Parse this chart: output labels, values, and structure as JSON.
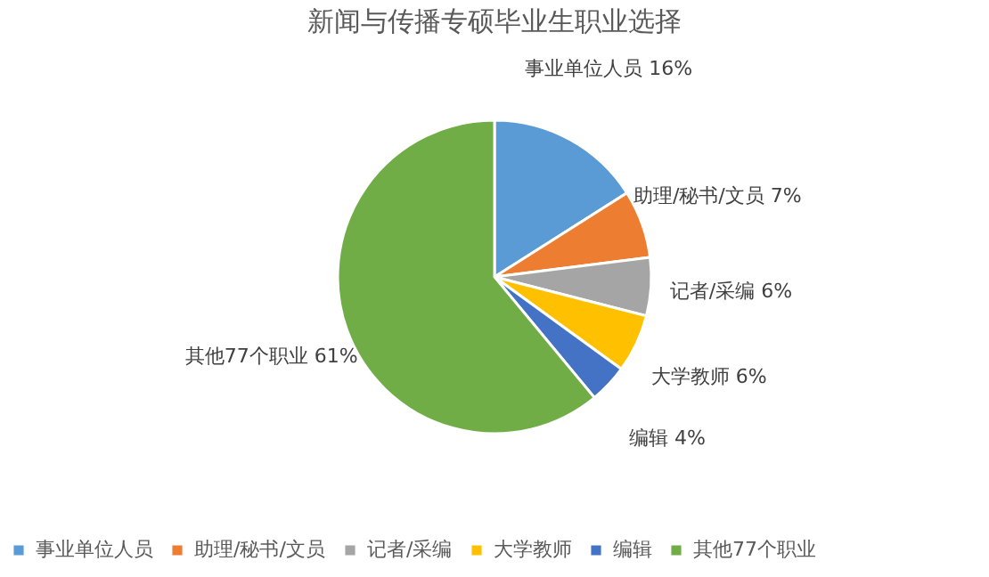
{
  "chart_data": {
    "type": "pie",
    "title": "新闻与传播专硕毕业生职业选择",
    "categories": [
      "事业单位人员",
      "助理/秘书/文员",
      "记者/采编",
      "大学教师",
      "编辑",
      "其他77个职业"
    ],
    "values": [
      16,
      7,
      6,
      6,
      4,
      61
    ],
    "value_labels": [
      "16%",
      "7%",
      "6%",
      "6%",
      "4%",
      "61%"
    ],
    "colors": [
      "#5b9bd5",
      "#ed7d31",
      "#a5a5a5",
      "#ffc000",
      "#4472c4",
      "#70ad47"
    ],
    "legend": "bottom"
  }
}
